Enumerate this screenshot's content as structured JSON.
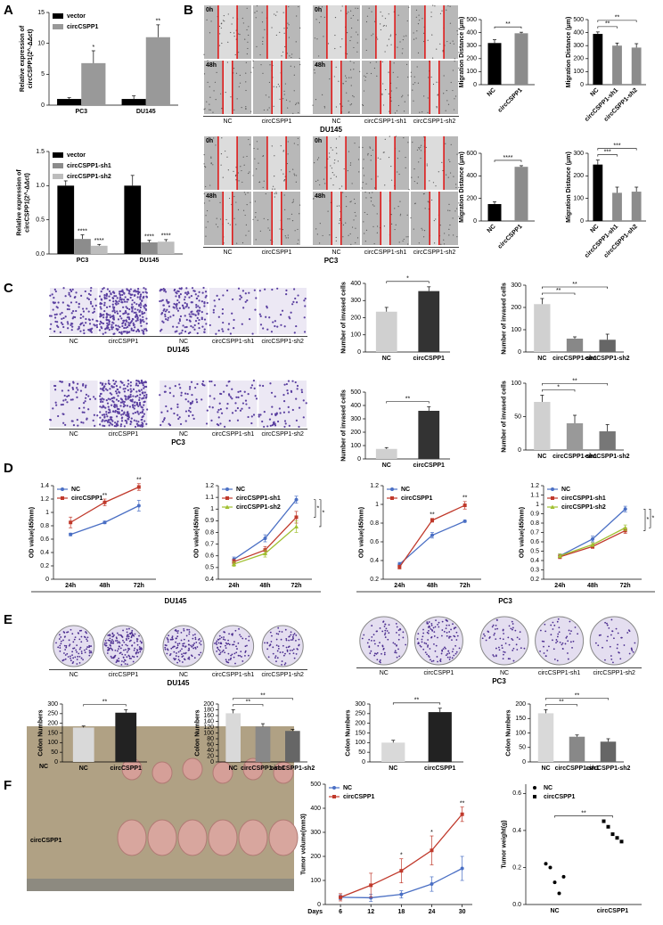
{
  "panel_labels": [
    "A",
    "B",
    "C",
    "D",
    "E",
    "F"
  ],
  "panel_d_captions": [
    "DU145",
    "PC3"
  ],
  "image_panels": [
    {
      "time_labels": [
        "0h",
        "48h",
        "0h",
        "48h"
      ],
      "labels": [
        "NC",
        "circCSPP1",
        "NC",
        "circCSPP1-sh1",
        "circCSPP1-sh2"
      ],
      "caption": "DU145"
    },
    {
      "time_labels": [
        "0h",
        "48h",
        "0h",
        "48h"
      ],
      "labels": [
        "NC",
        "circCSPP1",
        "NC",
        "circCSPP1-sh1",
        "circCSPP1-sh2"
      ],
      "caption": "PC3"
    },
    {
      "labels": [
        "NC",
        "circCSPP1",
        "NC",
        "circCSPP1-sh1",
        "circCSPP1-sh2"
      ],
      "caption": "DU145"
    },
    {
      "labels": [
        "NC",
        "circCSPP1",
        "NC",
        "circCSPP1-sh1",
        "circCSPP1-sh2"
      ],
      "caption": "PC3"
    },
    {
      "labels": [
        "NC",
        "circCSPP1",
        "NC",
        "circCSPP1-sh1",
        "circCSPP1-sh2"
      ],
      "caption": "DU145"
    },
    {
      "labels": [
        "NC",
        "circCSPP1",
        "NC",
        "circCSPP1-sh1",
        "circCSPP1-sh2"
      ],
      "caption": "PC3"
    },
    {
      "row_labels": [
        "NC",
        "circCSPP1"
      ]
    }
  ],
  "chart_data": [
    {
      "type": "bar",
      "ylabel": [
        "Relative expression of",
        "circCSPP1(2^-ΔΔct)"
      ],
      "categories": [
        "PC3",
        "DU145"
      ],
      "series": [
        {
          "name": "vector",
          "color": "#000000",
          "values": [
            1,
            1
          ],
          "errors": [
            0.2,
            0.5
          ]
        },
        {
          "name": "circCSPP1",
          "color": "#999999",
          "values": [
            6.8,
            11
          ],
          "errors": [
            2,
            2
          ],
          "stars": [
            "*",
            "**"
          ]
        }
      ],
      "ylim": [
        0,
        15
      ],
      "yticks": [
        0,
        5,
        10,
        15
      ],
      "legend": "upper left"
    },
    {
      "type": "bar",
      "ylabel": [
        "Relative expression of",
        "circCSPP1(2^-ΔΔct)"
      ],
      "categories": [
        "PC3",
        "DU145"
      ],
      "series": [
        {
          "name": "vector",
          "color": "#000000",
          "values": [
            1.0,
            1.0
          ],
          "errors": [
            0.07,
            0.15
          ]
        },
        {
          "name": "circCSPP1-sh1",
          "color": "#8c8c8c",
          "values": [
            0.22,
            0.17
          ],
          "errors": [
            0.06,
            0.03
          ],
          "stars": [
            "****",
            "****"
          ]
        },
        {
          "name": "circCSPP1-sh2",
          "color": "#bdbdbd",
          "values": [
            0.12,
            0.18
          ],
          "errors": [
            0.02,
            0.03
          ],
          "stars": [
            "****",
            "****"
          ]
        }
      ],
      "ylim": [
        0,
        1.5
      ],
      "yticks": [
        {
          "value": 0,
          "label": "0.0"
        },
        0.5,
        {
          "value": 1,
          "label": "1.0"
        },
        1.5
      ],
      "legend": "upper left"
    },
    {
      "type": "bar",
      "ylabel": "Migration Distance (μm)",
      "categories": [
        "NC",
        "circCSPP1"
      ],
      "values": [
        320,
        395
      ],
      "errors": [
        25,
        8
      ],
      "colors": [
        "#000000",
        "#8c8c8c"
      ],
      "ylim": [
        0,
        500
      ],
      "yticks": [
        0,
        100,
        200,
        300,
        400,
        500
      ],
      "brackets": [
        {
          "from": "NC",
          "to": "circCSPP1",
          "label": "**"
        }
      ]
    },
    {
      "type": "bar",
      "ylabel": "Migration Distance (μm)",
      "categories": [
        "NC",
        "circCSPP1-sh1",
        "circCSPP1-sh2"
      ],
      "values": [
        390,
        300,
        285
      ],
      "errors": [
        15,
        20,
        30
      ],
      "colors": [
        "#000000",
        "#8c8c8c",
        "#8c8c8c"
      ],
      "ylim": [
        0,
        500
      ],
      "yticks": [
        0,
        100,
        200,
        300,
        400,
        500
      ],
      "brackets": [
        {
          "from": "NC",
          "to": "circCSPP1-sh1",
          "label": "**"
        },
        {
          "from": "NC",
          "to": "circCSPP1-sh2",
          "label": "**"
        }
      ]
    },
    {
      "type": "bar",
      "ylabel": "Migration Distance (μm)",
      "categories": [
        "NC",
        "circCSPP1"
      ],
      "values": [
        150,
        480
      ],
      "errors": [
        20,
        10
      ],
      "colors": [
        "#000000",
        "#8c8c8c"
      ],
      "ylim": [
        0,
        600
      ],
      "yticks": [
        0,
        200,
        400,
        600
      ],
      "brackets": [
        {
          "from": "NC",
          "to": "circCSPP1",
          "label": "****"
        }
      ]
    },
    {
      "type": "bar",
      "ylabel": "Migration Distance (μm)",
      "categories": [
        "NC",
        "circCSPP1-sh1",
        "circCSPP1-sh2"
      ],
      "values": [
        250,
        125,
        130
      ],
      "errors": [
        20,
        25,
        20
      ],
      "colors": [
        "#000000",
        "#8c8c8c",
        "#8c8c8c"
      ],
      "ylim": [
        0,
        300
      ],
      "yticks": [
        0,
        100,
        200,
        300
      ],
      "brackets": [
        {
          "from": "NC",
          "to": "circCSPP1-sh1",
          "label": "***"
        },
        {
          "from": "NC",
          "to": "circCSPP1-sh2",
          "label": "***"
        }
      ]
    },
    {
      "type": "bar",
      "ylabel": "Number of invased cells",
      "categories": [
        "NC",
        "circCSPP1"
      ],
      "values": [
        235,
        355
      ],
      "errors": [
        25,
        25
      ],
      "colors": [
        "#d0d0d0",
        "#333333"
      ],
      "ylim": [
        0,
        400
      ],
      "yticks": [
        0,
        100,
        200,
        300,
        400
      ],
      "brackets": [
        {
          "from": "NC",
          "to": "circCSPP1",
          "label": "*"
        }
      ]
    },
    {
      "type": "bar",
      "ylabel": "Number of invased cells",
      "categories": [
        "NC",
        "circCSPP1-sh1",
        "circCSPP1-sh2"
      ],
      "values": [
        215,
        60,
        55
      ],
      "errors": [
        25,
        8,
        25
      ],
      "colors": [
        "#d0d0d0",
        "#888888",
        "#666666"
      ],
      "ylim": [
        0,
        300
      ],
      "yticks": [
        0,
        100,
        200,
        300
      ],
      "brackets": [
        {
          "from": "NC",
          "to": "circCSPP1-sh1",
          "label": "**"
        },
        {
          "from": "NC",
          "to": "circCSPP1-sh2",
          "label": "**"
        }
      ]
    },
    {
      "type": "bar",
      "ylabel": "Number of invased cells",
      "categories": [
        "NC",
        "circCSPP1"
      ],
      "values": [
        75,
        360
      ],
      "errors": [
        10,
        30
      ],
      "colors": [
        "#d0d0d0",
        "#333333"
      ],
      "ylim": [
        0,
        500
      ],
      "yticks": [
        0,
        100,
        200,
        300,
        400,
        500
      ],
      "brackets": [
        {
          "from": "NC",
          "to": "circCSPP1",
          "label": "**"
        }
      ]
    },
    {
      "type": "bar",
      "ylabel": "Number of invased cells",
      "categories": [
        "NC",
        "circCSPP1-sh1",
        "circCSPP1-sh2"
      ],
      "values": [
        72,
        40,
        28
      ],
      "errors": [
        10,
        12,
        10
      ],
      "colors": [
        "#d0d0d0",
        "#999999",
        "#777777"
      ],
      "ylim": [
        0,
        100
      ],
      "yticks": [
        0,
        50,
        100
      ],
      "brackets": [
        {
          "from": "NC",
          "to": "circCSPP1-sh1",
          "label": "*"
        },
        {
          "from": "NC",
          "to": "circCSPP1-sh2",
          "label": "**"
        }
      ]
    },
    {
      "type": "line",
      "ylabel": "OD value(450nm)",
      "categories": [
        "24h",
        "48h",
        "72h"
      ],
      "series": [
        {
          "name": "NC",
          "color": "#4a6fc4",
          "marker": "circle",
          "values": [
            0.67,
            0.85,
            1.1
          ],
          "errors": [
            0.02,
            0.02,
            0.08
          ]
        },
        {
          "name": "circCSPP1",
          "color": "#c0392b",
          "marker": "square",
          "values": [
            0.85,
            1.15,
            1.38
          ],
          "errors": [
            0.08,
            0.05,
            0.05
          ],
          "stars": [
            null,
            "**",
            "**"
          ]
        }
      ],
      "ylim": [
        0,
        1.4
      ],
      "yticks": [
        0,
        0.2,
        0.4,
        0.6,
        0.8,
        1,
        1.2,
        1.4
      ],
      "legend": "upper left"
    },
    {
      "type": "line",
      "ylabel": "OD value(450nm)",
      "categories": [
        "24h",
        "48h",
        "72h"
      ],
      "series": [
        {
          "name": "NC",
          "color": "#4a6fc4",
          "marker": "circle",
          "values": [
            0.57,
            0.75,
            1.08
          ],
          "errors": [
            0.02,
            0.03,
            0.03
          ]
        },
        {
          "name": "circCSPP1-sh1",
          "color": "#c0392b",
          "marker": "square",
          "values": [
            0.55,
            0.65,
            0.93
          ],
          "errors": [
            0.02,
            0.03,
            0.05
          ]
        },
        {
          "name": "circCSPP1-sh2",
          "color": "#a0c030",
          "marker": "triangle",
          "values": [
            0.53,
            0.62,
            0.85
          ],
          "errors": [
            0.02,
            0.03,
            0.05
          ]
        }
      ],
      "ylim": [
        0.4,
        1.2
      ],
      "yticks": [
        0.4,
        0.5,
        0.6,
        0.7,
        0.8,
        0.9,
        1,
        1.1,
        1.2
      ],
      "legend": "upper left",
      "end_brackets": [
        {
          "from": "NC",
          "to": "circCSPP1-sh1",
          "label": "*"
        },
        {
          "from": "NC",
          "to": "circCSPP1-sh2",
          "label": "*"
        }
      ]
    },
    {
      "type": "line",
      "ylabel": "OD value(450nm)",
      "categories": [
        "24h",
        "48h",
        "72h"
      ],
      "series": [
        {
          "name": "NC",
          "color": "#4a6fc4",
          "marker": "circle",
          "values": [
            0.36,
            0.67,
            0.82
          ],
          "errors": [
            0.02,
            0.03,
            0.01
          ]
        },
        {
          "name": "circCSPP1",
          "color": "#c0392b",
          "marker": "square",
          "values": [
            0.33,
            0.83,
            0.99
          ],
          "errors": [
            0.02,
            0.02,
            0.04
          ],
          "stars": [
            null,
            "**",
            "**"
          ]
        }
      ],
      "ylim": [
        0.2,
        1.2
      ],
      "yticks": [
        0.2,
        0.4,
        0.6,
        0.8,
        1,
        1.2
      ],
      "legend": "upper left"
    },
    {
      "type": "line",
      "ylabel": "OD value(450nm)",
      "categories": [
        "24h",
        "48h",
        "72h"
      ],
      "series": [
        {
          "name": "NC",
          "color": "#4a6fc4",
          "marker": "circle",
          "values": [
            0.45,
            0.63,
            0.95
          ],
          "errors": [
            0.02,
            0.03,
            0.03
          ]
        },
        {
          "name": "circCSPP1-sh1",
          "color": "#c0392b",
          "marker": "square",
          "values": [
            0.44,
            0.55,
            0.72
          ],
          "errors": [
            0.02,
            0.02,
            0.03
          ]
        },
        {
          "name": "circCSPP1-sh2",
          "color": "#a0c030",
          "marker": "triangle",
          "values": [
            0.45,
            0.57,
            0.75
          ],
          "errors": [
            0.02,
            0.02,
            0.03
          ]
        }
      ],
      "ylim": [
        0.2,
        1.2
      ],
      "yticks": [
        0.2,
        0.3,
        0.4,
        0.5,
        0.6,
        0.7,
        0.8,
        0.9,
        1,
        1.1,
        1.2
      ],
      "legend": "upper left",
      "end_brackets": [
        {
          "from": "NC",
          "to": "circCSPP1-sh1",
          "label": "*"
        },
        {
          "from": "NC",
          "to": "circCSPP1-sh2",
          "label": "*"
        }
      ]
    },
    {
      "type": "bar",
      "ylabel": "Colon Numbers",
      "categories": [
        "NC",
        "circCSPP1"
      ],
      "values": [
        178,
        255
      ],
      "errors": [
        8,
        15
      ],
      "colors": [
        "#d9d9d9",
        "#222222"
      ],
      "ylim": [
        0,
        300
      ],
      "yticks": [
        0,
        50,
        100,
        150,
        200,
        250,
        300
      ],
      "brackets": [
        {
          "from": "NC",
          "to": "circCSPP1",
          "label": "**"
        }
      ]
    },
    {
      "type": "bar",
      "ylabel": "Colon Numbers",
      "categories": [
        "NC",
        "circCSPP1-sh1",
        "circCSPP1-sh2"
      ],
      "values": [
        168,
        122,
        107
      ],
      "errors": [
        12,
        10,
        5
      ],
      "colors": [
        "#d9d9d9",
        "#888888",
        "#666666"
      ],
      "ylim": [
        0,
        200
      ],
      "yticks": [
        0,
        20,
        40,
        60,
        80,
        100,
        120,
        140,
        160,
        180,
        200
      ],
      "brackets": [
        {
          "from": "NC",
          "to": "circCSPP1-sh1",
          "label": "**"
        },
        {
          "from": "NC",
          "to": "circCSPP1-sh2",
          "label": "**"
        }
      ]
    },
    {
      "type": "bar",
      "ylabel": "Colon Numbers",
      "categories": [
        "NC",
        "circCSPP1"
      ],
      "values": [
        100,
        258
      ],
      "errors": [
        12,
        20
      ],
      "colors": [
        "#d9d9d9",
        "#222222"
      ],
      "ylim": [
        0,
        300
      ],
      "yticks": [
        0,
        50,
        100,
        150,
        200,
        250,
        300
      ],
      "brackets": [
        {
          "from": "NC",
          "to": "circCSPP1",
          "label": "**"
        }
      ]
    },
    {
      "type": "bar",
      "ylabel": "Colon Numbers",
      "categories": [
        "NC",
        "circCSPP1-sh1",
        "circCSPP1-sh2"
      ],
      "values": [
        168,
        87,
        70
      ],
      "errors": [
        12,
        6,
        10
      ],
      "colors": [
        "#d9d9d9",
        "#888888",
        "#666666"
      ],
      "ylim": [
        0,
        200
      ],
      "yticks": [
        0,
        50,
        100,
        150,
        200
      ],
      "brackets": [
        {
          "from": "NC",
          "to": "circCSPP1-sh1",
          "label": "**"
        },
        {
          "from": "NC",
          "to": "circCSPP1-sh2",
          "label": "**"
        }
      ]
    },
    {
      "type": "line",
      "ylabel": "Tumor volume(mm3)",
      "xlabel": "Days",
      "x": [
        6,
        12,
        18,
        24,
        30
      ],
      "xlim": [
        3,
        32
      ],
      "xticks": [
        6,
        12,
        18,
        24,
        30
      ],
      "series": [
        {
          "name": "NC",
          "color": "#4a6fc4",
          "marker": "circle",
          "values": [
            30,
            28,
            42,
            85,
            150
          ],
          "errors": [
            10,
            15,
            15,
            30,
            50
          ]
        },
        {
          "name": "circCSPP1",
          "color": "#c0392b",
          "marker": "square",
          "values": [
            30,
            80,
            140,
            225,
            375
          ],
          "errors": [
            15,
            50,
            50,
            60,
            30
          ],
          "stars": [
            null,
            null,
            "*",
            "*",
            "**"
          ]
        }
      ],
      "ylim": [
        0,
        500
      ],
      "yticks": [
        0,
        100,
        200,
        300,
        400,
        500
      ],
      "legend": "upper left"
    },
    {
      "type": "strip",
      "ylabel": "Tumor weight(g)",
      "categories": [
        "NC",
        "circCSPP1"
      ],
      "series": [
        {
          "name": "NC",
          "color": "#000000",
          "marker": "circle",
          "values": [
            0.22,
            0.2,
            0.12,
            0.06,
            0.15
          ]
        },
        {
          "name": "circCSPP1",
          "color": "#000000",
          "marker": "square",
          "values": [
            0.45,
            0.42,
            0.38,
            0.36,
            0.34
          ]
        }
      ],
      "ylim": [
        0,
        0.65
      ],
      "yticks": [
        {
          "value": 0,
          "label": "0.0"
        },
        0.2,
        0.4,
        0.6
      ],
      "legend": "upper left",
      "brackets": [
        {
          "from": "NC",
          "to": "circCSPP1",
          "label": "**"
        }
      ]
    }
  ]
}
